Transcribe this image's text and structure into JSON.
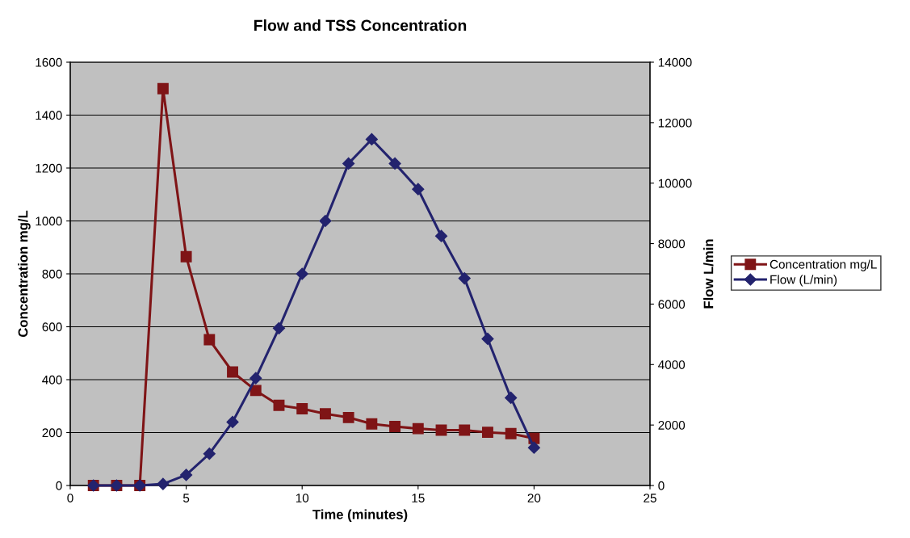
{
  "chart_data": {
    "type": "line",
    "title": "Flow and TSS Concentration",
    "xlabel": "Time (minutes)",
    "ylabel": "Concentration mg/L",
    "y2label": "Flow L/min",
    "x": [
      1,
      2,
      3,
      4,
      5,
      6,
      7,
      8,
      9,
      10,
      11,
      12,
      13,
      14,
      15,
      16,
      17,
      18,
      19,
      20
    ],
    "series": [
      {
        "name": "Concentration mg/L",
        "color": "#7f1416",
        "marker": "square",
        "values": [
          0,
          0,
          0,
          1500,
          865,
          551,
          429,
          359,
          303,
          290,
          271,
          257,
          233,
          223,
          215,
          209,
          209,
          201,
          196,
          178
        ]
      },
      {
        "name": "Flow (L/min)",
        "color": "#23236e",
        "marker": "diamond",
        "axis": "y2",
        "values": [
          0,
          0,
          0,
          50,
          350,
          1050,
          2100,
          3550,
          5200,
          7000,
          8750,
          10650,
          11450,
          10650,
          9800,
          8250,
          6850,
          4850,
          2900,
          1250
        ]
      }
    ],
    "xlim": [
      0,
      25
    ],
    "xticks": [
      0,
      5,
      10,
      15,
      20,
      25
    ],
    "ylim": [
      0,
      1600
    ],
    "yticks": [
      0,
      200,
      400,
      600,
      800,
      1000,
      1200,
      1400,
      1600
    ],
    "y2lim": [
      0,
      14000
    ],
    "y2ticks": [
      0,
      2000,
      4000,
      6000,
      8000,
      10000,
      12000,
      14000
    ],
    "grid": "y",
    "legend": "right",
    "line_style": "solid"
  }
}
